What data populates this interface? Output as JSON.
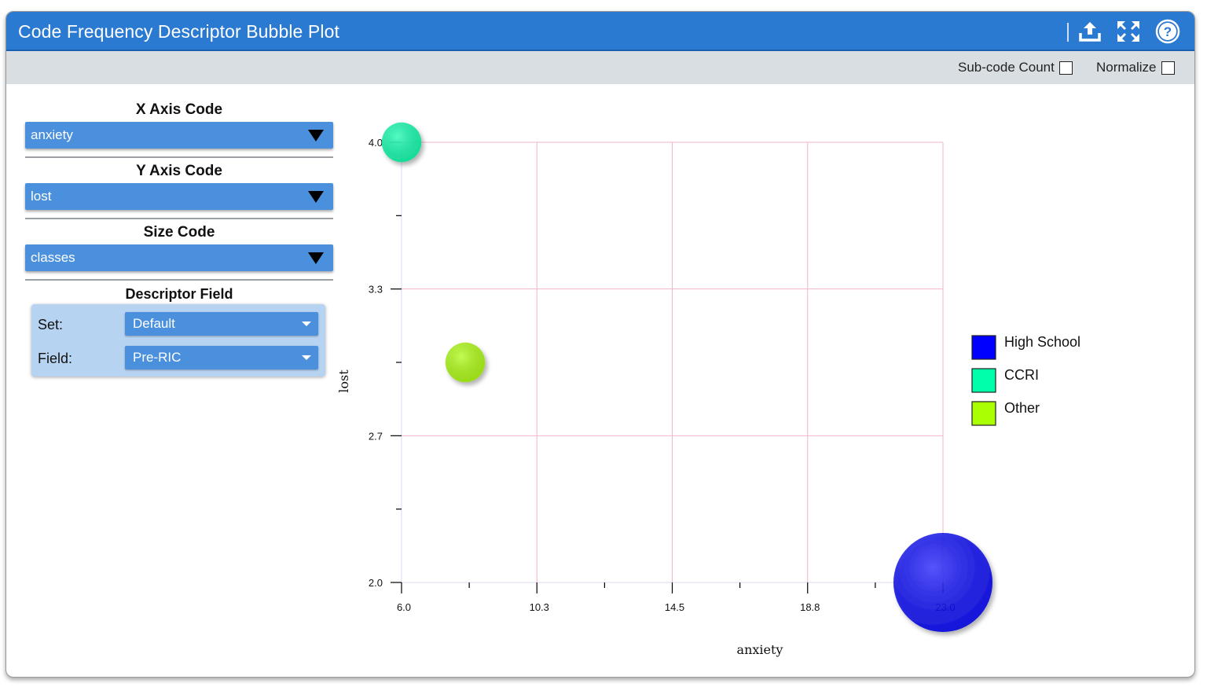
{
  "window": {
    "title": "Code Frequency Descriptor Bubble Plot",
    "icons": [
      "upload-icon",
      "expand-icon",
      "help-icon"
    ]
  },
  "options": {
    "subcode_count_label": "Sub-code Count",
    "normalize_label": "Normalize",
    "subcode_count_checked": false,
    "normalize_checked": false
  },
  "controls": {
    "x_axis": {
      "label": "X Axis Code",
      "value": "anxiety"
    },
    "y_axis": {
      "label": "Y Axis Code",
      "value": "lost"
    },
    "size": {
      "label": "Size Code",
      "value": "classes"
    },
    "descriptor": {
      "label": "Descriptor Field",
      "set_label": "Set:",
      "set_value": "Default",
      "field_label": "Field:",
      "field_value": "Pre-RIC"
    }
  },
  "colors": {
    "accent": "#2a7ad2",
    "select": "#4a90dc",
    "grid": "#f4b6c6"
  },
  "chart_data": {
    "type": "scatter",
    "subtype": "bubble",
    "title": "",
    "xlabel": "anxiety",
    "ylabel": "lost",
    "xlim": [
      6.0,
      23.0
    ],
    "ylim": [
      2.0,
      4.0
    ],
    "x_ticks": [
      "6.0",
      "10.3",
      "14.5",
      "18.8",
      "23.0"
    ],
    "y_ticks": [
      "2.0",
      "2.7",
      "3.3",
      "4.0"
    ],
    "grid": true,
    "legend_position": "right",
    "series": [
      {
        "name": "High School",
        "color": "#0000ff",
        "x": 23.0,
        "y": 2.0,
        "size": 3
      },
      {
        "name": "CCRI",
        "color": "#00ffaa",
        "x": 6.0,
        "y": 4.0,
        "size": 1.2
      },
      {
        "name": "Other",
        "color": "#aaff00",
        "x": 8.0,
        "y": 3.0,
        "size": 1.2
      }
    ]
  }
}
